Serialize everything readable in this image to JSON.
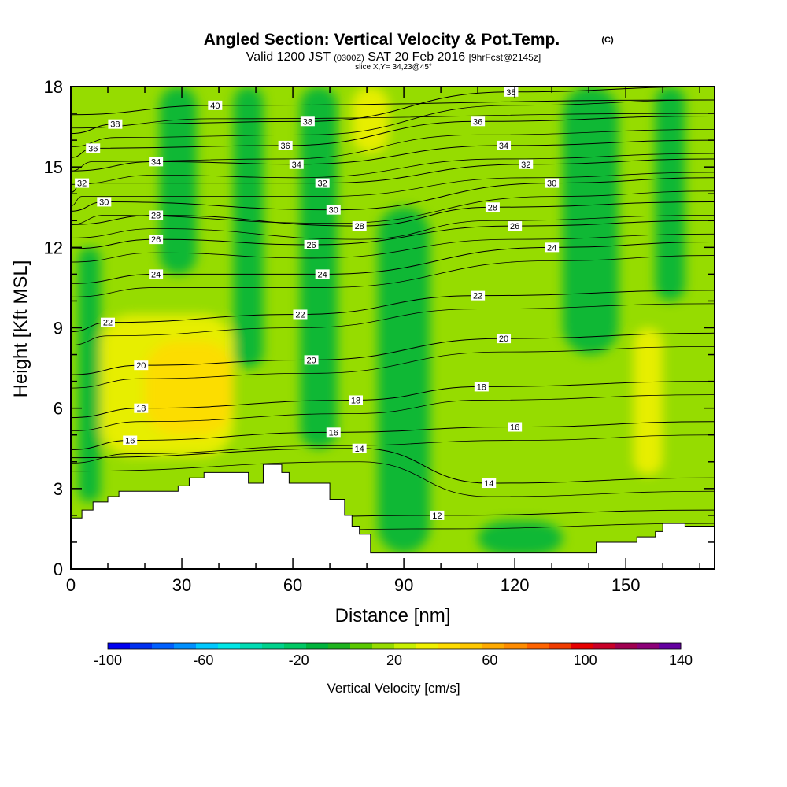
{
  "chart_data": {
    "type": "heatmap",
    "title": "Angled Section: Vertical Velocity & Pot.Temp.",
    "title_unit": "(C)",
    "subtitle_prefix": "Valid 1200 JST",
    "subtitle_utc": "(0300Z)",
    "subtitle_date": "SAT 20 Feb 2016",
    "subtitle_fcst": "[9hrFcst@2145z]",
    "slice_label": "slice X,Y= 34,23@45°",
    "xlabel": "Distance [nm]",
    "ylabel": "Height [Kft MSL]",
    "xlim": [
      0,
      174
    ],
    "ylim": [
      0,
      18
    ],
    "x_ticks": [
      0,
      30,
      60,
      90,
      120,
      150
    ],
    "y_ticks": [
      0,
      3,
      6,
      9,
      12,
      15,
      18
    ],
    "colorbar": {
      "label": "Vertical Velocity [cm/s]",
      "tick_values": [
        -100,
        -60,
        -20,
        20,
        60,
        100,
        140
      ],
      "tick_labels": [
        "-100",
        "-60",
        "-20",
        "20",
        "60",
        "100",
        "140"
      ],
      "min": -100,
      "max": 140,
      "colors": [
        "#0000f0",
        "#0030f0",
        "#0060ff",
        "#0090ff",
        "#00c8ff",
        "#00e6e6",
        "#00dcb4",
        "#00d28c",
        "#00c864",
        "#00b43c",
        "#1eb41e",
        "#5ac800",
        "#96dc00",
        "#c8f000",
        "#f0f000",
        "#ffdc00",
        "#ffc800",
        "#ffaa00",
        "#ff8c00",
        "#ff6400",
        "#f03c00",
        "#e60000",
        "#c80028",
        "#a00050",
        "#8c0078",
        "#6400a0"
      ]
    },
    "terrain_profile": {
      "x": [
        0,
        3,
        3,
        6,
        6,
        10,
        10,
        13,
        13,
        29,
        29,
        32,
        32,
        36,
        36,
        48,
        48,
        52,
        52,
        57,
        57,
        59,
        59,
        70,
        70,
        74,
        74,
        76,
        76,
        78,
        78,
        81,
        81,
        84,
        84,
        142,
        142,
        153,
        153,
        158,
        158,
        160,
        160,
        166,
        166,
        174
      ],
      "y": [
        1.9,
        1.9,
        2.2,
        2.2,
        2.5,
        2.5,
        2.7,
        2.7,
        2.9,
        2.9,
        3.1,
        3.1,
        3.4,
        3.4,
        3.6,
        3.6,
        3.2,
        3.2,
        3.9,
        3.9,
        3.6,
        3.6,
        3.2,
        3.2,
        2.6,
        2.6,
        2.0,
        2.0,
        1.6,
        1.6,
        1.3,
        1.3,
        0.6,
        0.6,
        0.6,
        0.6,
        1.0,
        1.0,
        1.2,
        1.2,
        1.4,
        1.4,
        1.7,
        1.7,
        1.6,
        1.6
      ]
    },
    "velocity_features": [
      {
        "value": 30,
        "x": [
          8,
          44
        ],
        "y": [
          4.2,
          9.5
        ]
      },
      {
        "value": 40,
        "x": [
          20,
          44
        ],
        "y": [
          5.0,
          8.5
        ]
      },
      {
        "value": 30,
        "x": [
          76,
          86
        ],
        "y": [
          15.5,
          18
        ]
      },
      {
        "value": 30,
        "x": [
          152,
          160
        ],
        "y": [
          3.5,
          9.0
        ]
      },
      {
        "value": -15,
        "x": [
          62,
          72
        ],
        "y": [
          4.5,
          18
        ]
      },
      {
        "value": -10,
        "x": [
          83,
          97
        ],
        "y": [
          0.6,
          13.5
        ]
      },
      {
        "value": -10,
        "x": [
          133,
          148
        ],
        "y": [
          8.0,
          18
        ]
      },
      {
        "value": -10,
        "x": [
          158,
          166
        ],
        "y": [
          10.0,
          18
        ]
      },
      {
        "value": -8,
        "x": [
          24,
          34
        ],
        "y": [
          11.0,
          18
        ]
      },
      {
        "value": -8,
        "x": [
          44,
          52
        ],
        "y": [
          7.5,
          18
        ]
      },
      {
        "value": -8,
        "x": [
          110,
          133
        ],
        "y": [
          0.5,
          1.8
        ]
      },
      {
        "value": -8,
        "x": [
          2,
          8
        ],
        "y": [
          2.5,
          12.0
        ]
      }
    ],
    "potential_temperature_contours": {
      "labels": [
        {
          "x": 39,
          "y": 17.3,
          "value": "40"
        },
        {
          "x": 12,
          "y": 16.6,
          "value": "38"
        },
        {
          "x": 64,
          "y": 16.7,
          "value": "38"
        },
        {
          "x": 119,
          "y": 17.8,
          "value": "38"
        },
        {
          "x": 6,
          "y": 15.7,
          "value": "36"
        },
        {
          "x": 58,
          "y": 15.8,
          "value": "36"
        },
        {
          "x": 110,
          "y": 16.7,
          "value": "36"
        },
        {
          "x": 23,
          "y": 15.2,
          "value": "34"
        },
        {
          "x": 61,
          "y": 15.1,
          "value": "34"
        },
        {
          "x": 117,
          "y": 15.8,
          "value": "34"
        },
        {
          "x": 3,
          "y": 14.4,
          "value": "32"
        },
        {
          "x": 68,
          "y": 14.4,
          "value": "32"
        },
        {
          "x": 123,
          "y": 15.1,
          "value": "32"
        },
        {
          "x": 9,
          "y": 13.7,
          "value": "30"
        },
        {
          "x": 71,
          "y": 13.4,
          "value": "30"
        },
        {
          "x": 130,
          "y": 14.4,
          "value": "30"
        },
        {
          "x": 23,
          "y": 13.2,
          "value": "28"
        },
        {
          "x": 78,
          "y": 12.8,
          "value": "28"
        },
        {
          "x": 114,
          "y": 13.5,
          "value": "28"
        },
        {
          "x": 23,
          "y": 12.3,
          "value": "26"
        },
        {
          "x": 65,
          "y": 12.1,
          "value": "26"
        },
        {
          "x": 120,
          "y": 12.8,
          "value": "26"
        },
        {
          "x": 23,
          "y": 11.0,
          "value": "24"
        },
        {
          "x": 68,
          "y": 11.0,
          "value": "24"
        },
        {
          "x": 130,
          "y": 12.0,
          "value": "24"
        },
        {
          "x": 10,
          "y": 9.2,
          "value": "22"
        },
        {
          "x": 62,
          "y": 9.5,
          "value": "22"
        },
        {
          "x": 110,
          "y": 10.2,
          "value": "22"
        },
        {
          "x": 19,
          "y": 7.6,
          "value": "20"
        },
        {
          "x": 65,
          "y": 7.8,
          "value": "20"
        },
        {
          "x": 117,
          "y": 8.6,
          "value": "20"
        },
        {
          "x": 77,
          "y": 6.3,
          "value": "18"
        },
        {
          "x": 19,
          "y": 6.0,
          "value": "18"
        },
        {
          "x": 111,
          "y": 6.8,
          "value": "18"
        },
        {
          "x": 16,
          "y": 4.8,
          "value": "16"
        },
        {
          "x": 71,
          "y": 5.1,
          "value": "16"
        },
        {
          "x": 120,
          "y": 5.3,
          "value": "16"
        },
        {
          "x": 78,
          "y": 4.5,
          "value": "14"
        },
        {
          "x": 113,
          "y": 3.2,
          "value": "14"
        },
        {
          "x": 99,
          "y": 2.0,
          "value": "12"
        }
      ]
    }
  }
}
